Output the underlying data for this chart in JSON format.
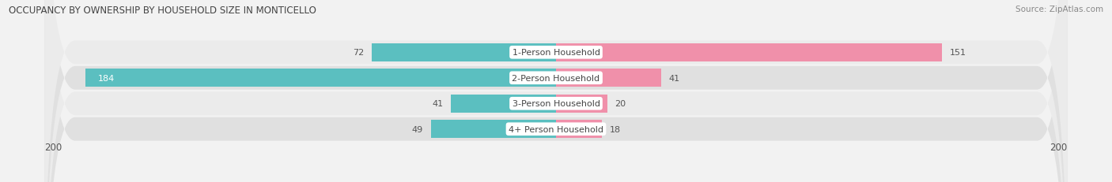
{
  "title": "OCCUPANCY BY OWNERSHIP BY HOUSEHOLD SIZE IN MONTICELLO",
  "source": "Source: ZipAtlas.com",
  "categories": [
    "1-Person Household",
    "2-Person Household",
    "3-Person Household",
    "4+ Person Household"
  ],
  "owner_values": [
    72,
    184,
    41,
    49
  ],
  "renter_values": [
    151,
    41,
    20,
    18
  ],
  "owner_color": "#5bbfc0",
  "renter_color": "#f090aa",
  "axis_max": 200,
  "row_colors": [
    "#ebebeb",
    "#e0e0e0",
    "#ebebeb",
    "#e0e0e0"
  ],
  "fig_bg": "#f2f2f2",
  "label_color": "#555555",
  "title_color": "#444444",
  "source_color": "#888888"
}
